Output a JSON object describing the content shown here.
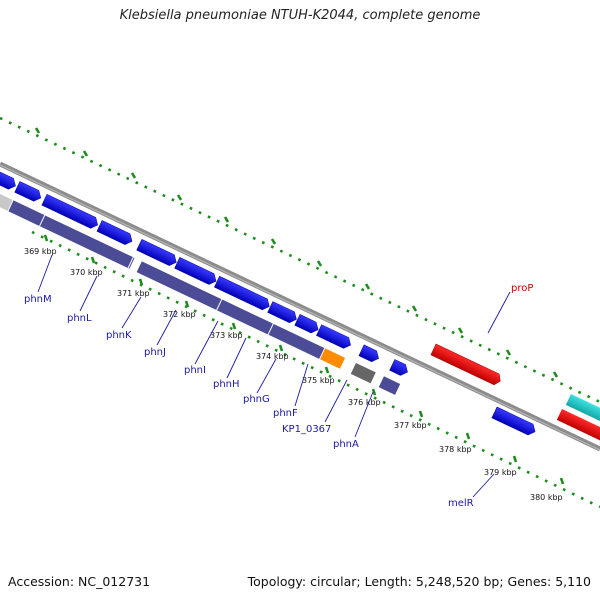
{
  "title": "Klebsiella pneumoniae NTUH-K2044, complete genome",
  "footer": {
    "accession": "Accession: NC_012731",
    "topology": "Topology: circular; Length: 5,248,520 bp; Genes: 5,110"
  },
  "colors": {
    "backbone": "#8c8c8c",
    "forward_cds": "#1010e6",
    "reverse_cds": "#e60000",
    "gene_bar": "#4b4b96",
    "tick": "#1e8c1e",
    "orange_cds": "#ff8c00",
    "grey_cds": "#666666",
    "cyan_cds": "#22cccc"
  },
  "kbp_labels": [
    "369 kbp",
    "370 kbp",
    "371 kbp",
    "372 kbp",
    "373 kbp",
    "374 kbp",
    "375 kbp",
    "376 kbp",
    "377 kbp",
    "378 kbp",
    "379 kbp",
    "380 kbp"
  ],
  "gene_labels": [
    "phnM",
    "phnL",
    "phnK",
    "phnJ",
    "phnI",
    "phnH",
    "phnG",
    "phnF",
    "KP1_0367",
    "phnA",
    "melR",
    "proP"
  ]
}
